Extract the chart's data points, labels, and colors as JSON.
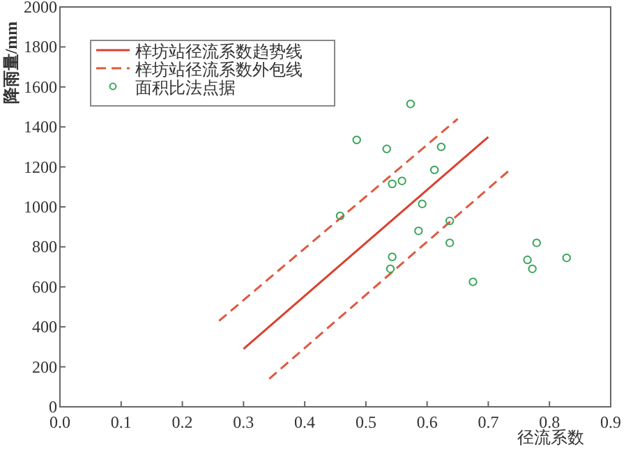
{
  "chart_data": {
    "type": "scatter",
    "xlabel": "径流系数",
    "ylabel": "降雨量/mm",
    "xlim": [
      0,
      0.9
    ],
    "ylim": [
      0,
      2000
    ],
    "xticks": [
      {
        "value": 0,
        "label": "0.0"
      },
      0.1,
      0.2,
      0.3,
      0.4,
      0.5,
      0.6,
      0.7,
      0.8,
      0.9
    ],
    "yticks": [
      0,
      200,
      400,
      600,
      800,
      1000,
      1200,
      1400,
      1600,
      1800,
      2000
    ],
    "legend": "top left",
    "grid": false,
    "series": [
      {
        "type": "line",
        "name": "梓坊站径流系数趋势线",
        "color": "#d9402e",
        "line_style": "solid",
        "x": [
          0.3,
          0.7
        ],
        "values": [
          290,
          1350
        ]
      },
      {
        "type": "line",
        "name": "梓坊站径流系数外包线",
        "color": "#e0583e",
        "line_style": "dashed",
        "x": [
          0.26,
          0.65
        ],
        "values": [
          430,
          1440
        ]
      },
      {
        "type": "line",
        "color": "#e0583e",
        "line_style": "dashed",
        "x": [
          0.342,
          0.737
        ],
        "values": [
          140,
          1190
        ]
      },
      {
        "name": "面积比法点据",
        "color": "#3aa55a",
        "marker": "circle",
        "x": [
          0.485,
          0.573,
          0.534,
          0.623,
          0.612,
          0.543,
          0.559,
          0.458,
          0.592,
          0.637,
          0.586,
          0.637,
          0.543,
          0.54,
          0.675,
          0.764,
          0.779,
          0.772,
          0.828
        ],
        "values": [
          1335,
          1515,
          1290,
          1300,
          1185,
          1115,
          1130,
          955,
          1015,
          930,
          880,
          820,
          750,
          690,
          625,
          735,
          820,
          690,
          745
        ]
      }
    ]
  }
}
